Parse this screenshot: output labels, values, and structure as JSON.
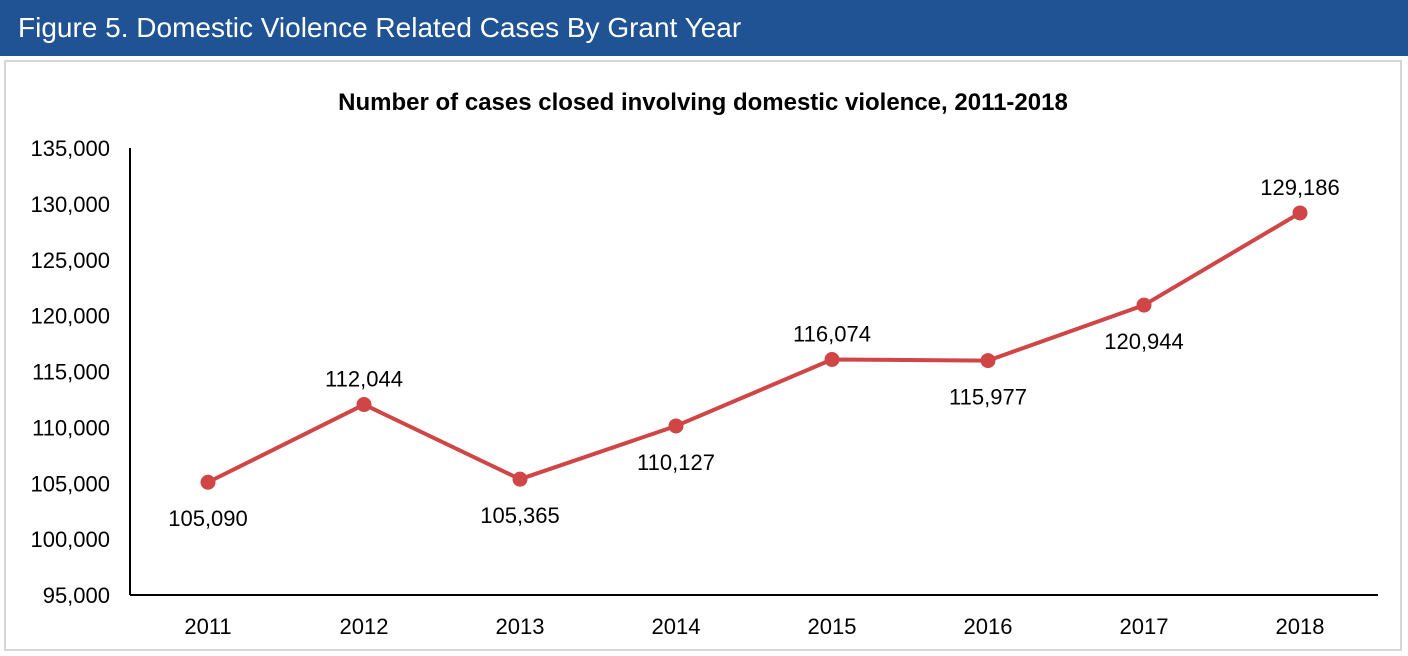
{
  "header": {
    "title": "Figure 5.  Domestic Violence Related Cases By Grant Year"
  },
  "colors": {
    "header_background": "#1f5394",
    "series_line": "#d04545",
    "axis": "#000000"
  },
  "chart_data": {
    "type": "line",
    "title": "Number of cases closed involving domestic violence, 2011-2018",
    "xlabel": "",
    "ylabel": "",
    "categories": [
      "2011",
      "2012",
      "2013",
      "2014",
      "2015",
      "2016",
      "2017",
      "2018"
    ],
    "values": [
      105090,
      112044,
      105365,
      110127,
      116074,
      115977,
      120944,
      129186
    ],
    "data_labels": [
      "105,090",
      "112,044",
      "105,365",
      "110,127",
      "116,074",
      "115,977",
      "120,944",
      "129,186"
    ],
    "data_label_placement": [
      "below",
      "above",
      "below",
      "below",
      "above",
      "below",
      "below",
      "above"
    ],
    "ylim": [
      95000,
      135000
    ],
    "yticks": [
      95000,
      100000,
      105000,
      110000,
      115000,
      120000,
      125000,
      130000,
      135000
    ],
    "ytick_labels": [
      "95,000",
      "100,000",
      "105,000",
      "110,000",
      "115,000",
      "120,000",
      "125,000",
      "130,000",
      "135,000"
    ],
    "grid": false,
    "legend": "none",
    "markers": "circle"
  }
}
